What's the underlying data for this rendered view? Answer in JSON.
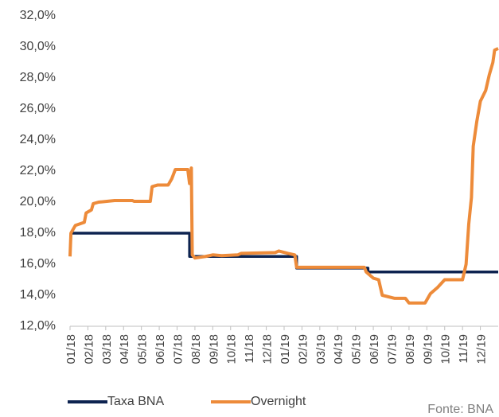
{
  "chart_data": {
    "type": "line",
    "xlim": [
      0,
      24
    ],
    "xticks": [
      {
        "value": 0,
        "label": "01/18"
      },
      {
        "value": 1,
        "label": "02/18"
      },
      {
        "value": 2,
        "label": "03/18"
      },
      {
        "value": 3,
        "label": "04/18"
      },
      {
        "value": 4,
        "label": "05/18"
      },
      {
        "value": 5,
        "label": "06/18"
      },
      {
        "value": 6,
        "label": "07/18"
      },
      {
        "value": 7,
        "label": "08/18"
      },
      {
        "value": 8,
        "label": "09/18"
      },
      {
        "value": 9,
        "label": "10/18"
      },
      {
        "value": 10,
        "label": "11/18"
      },
      {
        "value": 11,
        "label": "12/18"
      },
      {
        "value": 12,
        "label": "01/19"
      },
      {
        "value": 13,
        "label": "02/19"
      },
      {
        "value": 14,
        "label": "03/19"
      },
      {
        "value": 15,
        "label": "04/19"
      },
      {
        "value": 16,
        "label": "05/19"
      },
      {
        "value": 17,
        "label": "06/19"
      },
      {
        "value": 18,
        "label": "07/19"
      },
      {
        "value": 19,
        "label": "08/19"
      },
      {
        "value": 20,
        "label": "09/19"
      },
      {
        "value": 21,
        "label": "10/19"
      },
      {
        "value": 22,
        "label": "11/19"
      },
      {
        "value": 23,
        "label": "12/19"
      }
    ],
    "ylim": [
      12,
      32
    ],
    "yticks": [
      {
        "value": 12,
        "label": "12,0%"
      },
      {
        "value": 14,
        "label": "14,0%"
      },
      {
        "value": 16,
        "label": "16,0%"
      },
      {
        "value": 18,
        "label": "18,0%"
      },
      {
        "value": 20,
        "label": "20,0%"
      },
      {
        "value": 22,
        "label": "22,0%"
      },
      {
        "value": 24,
        "label": "24,0%"
      },
      {
        "value": 26,
        "label": "26,0%"
      },
      {
        "value": 28,
        "label": "28,0%"
      },
      {
        "value": 30,
        "label": "30,0%"
      },
      {
        "value": 32,
        "label": "32,0%"
      }
    ],
    "series": [
      {
        "name": "Taxa BNA",
        "color": "#0d2350",
        "x": [
          0,
          6.7,
          6.7,
          12.7,
          12.7,
          16.7,
          16.7,
          24
        ],
        "values": [
          18,
          18,
          16.5,
          16.5,
          15.75,
          15.75,
          15.5,
          15.5
        ]
      },
      {
        "name": "Overnight",
        "color": "#ed8b3a",
        "x": [
          0,
          0.05,
          0.3,
          0.8,
          0.9,
          1.2,
          1.3,
          1.6,
          2.5,
          3.5,
          3.6,
          4.5,
          4.6,
          4.9,
          5.5,
          5.7,
          5.9,
          6.6,
          6.7,
          6.8,
          6.85,
          7.0,
          7.6,
          8.0,
          8.5,
          9.4,
          9.6,
          11.5,
          11.7,
          12.2,
          12.6,
          12.7,
          16.5,
          16.6,
          17.0,
          17.3,
          17.5,
          18.2,
          18.8,
          19.0,
          19.9,
          20.2,
          20.6,
          21.0,
          22.0,
          22.2,
          22.35,
          22.5,
          22.6,
          22.8,
          23.0,
          23.3,
          23.5,
          23.7,
          23.8,
          24
        ],
        "values": [
          16.5,
          18.0,
          18.5,
          18.7,
          19.3,
          19.5,
          19.9,
          20.0,
          20.1,
          20.1,
          20.05,
          20.05,
          21.0,
          21.1,
          21.1,
          21.5,
          22.1,
          22.1,
          21.2,
          22.2,
          16.6,
          16.4,
          16.5,
          16.6,
          16.55,
          16.6,
          16.7,
          16.75,
          16.85,
          16.7,
          16.6,
          15.8,
          15.8,
          15.5,
          15.1,
          15.0,
          14.0,
          13.8,
          13.8,
          13.5,
          13.5,
          14.1,
          14.5,
          15.0,
          15.0,
          16.0,
          18.6,
          20.3,
          23.6,
          25.2,
          26.5,
          27.2,
          28.2,
          29.0,
          29.8,
          29.9
        ]
      }
    ],
    "source": "Fonte: BNA"
  }
}
